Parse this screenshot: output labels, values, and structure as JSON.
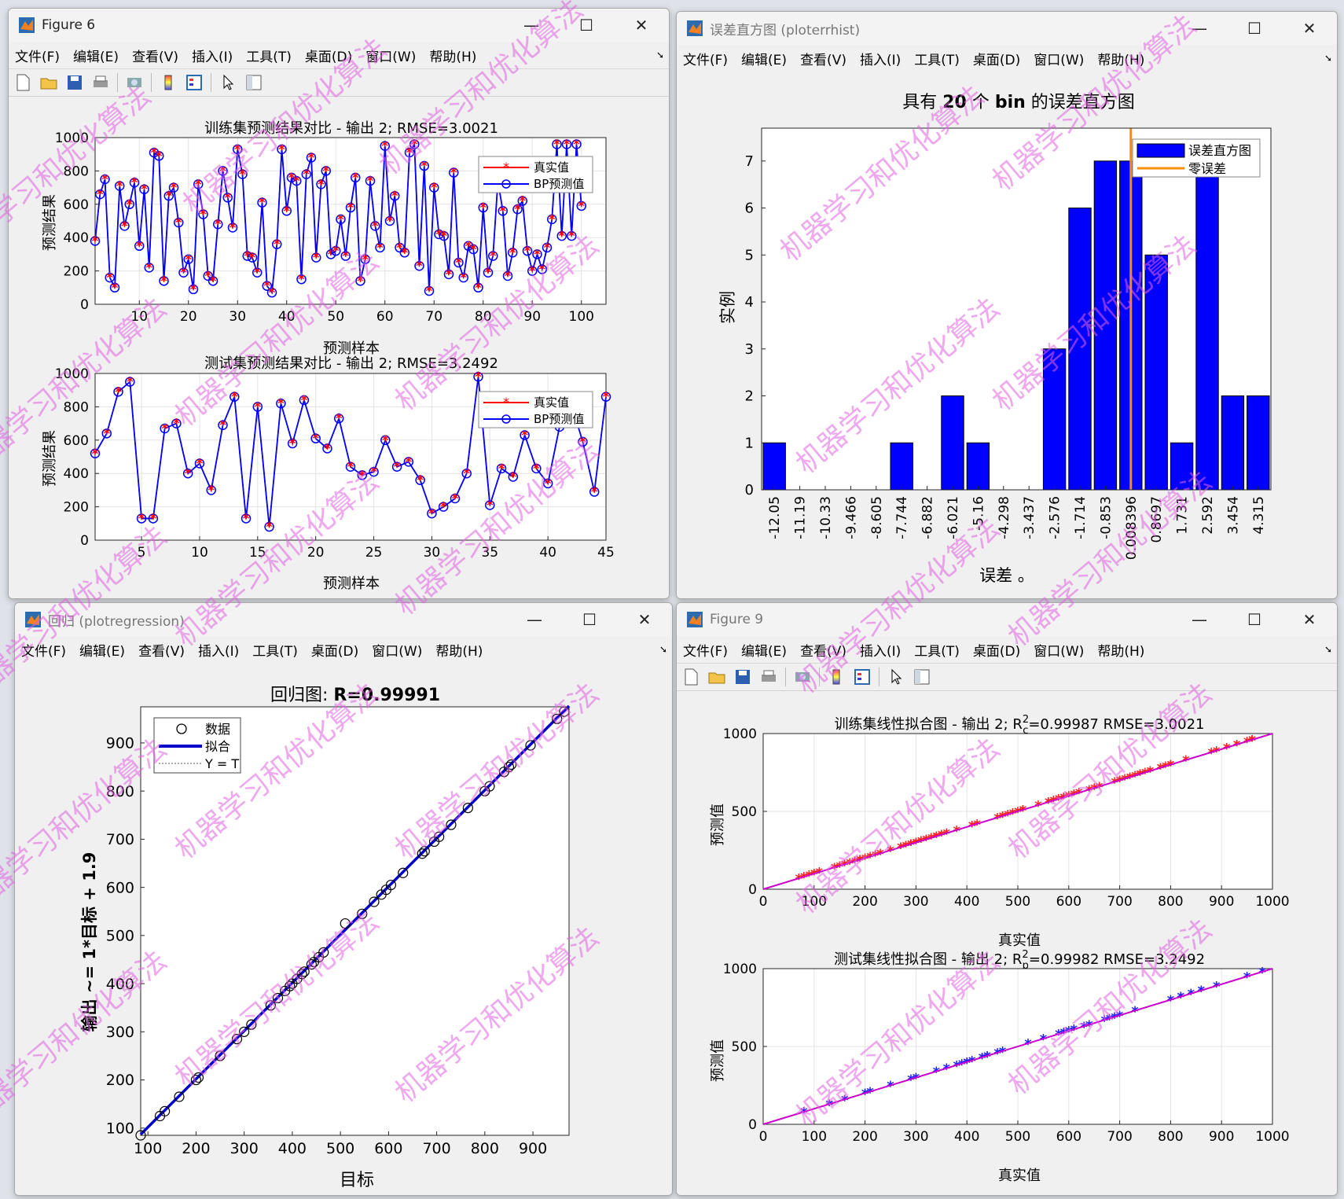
{
  "win1": {
    "title": "Figure 6",
    "menu": [
      "文件(F)",
      "编辑(E)",
      "查看(V)",
      "插入(I)",
      "工具(T)",
      "桌面(D)",
      "窗口(W)",
      "帮助(H)"
    ],
    "train_plot": {
      "title": "训练集预测结果对比 - 输出 2; RMSE=3.0021",
      "xlabel": "预测样本",
      "ylabel": "预测结果",
      "legend": [
        "真实值",
        "BP预测值"
      ]
    },
    "test_plot": {
      "title": "测试集预测结果对比 - 输出 2; RMSE=3.2492",
      "xlabel": "预测样本",
      "ylabel": "预测结果",
      "legend": [
        "真实值",
        "BP预测值"
      ]
    }
  },
  "win2": {
    "title": "误差直方图 (ploterrhist)",
    "menu": [
      "文件(F)",
      "编辑(E)",
      "查看(V)",
      "插入(I)",
      "工具(T)",
      "桌面(D)",
      "窗口(W)",
      "帮助(H)"
    ],
    "title_pre": "具有",
    "title_num": "20",
    "title_mid": "个",
    "title_bin": "bin",
    "title_post": "的误差直方图",
    "xlabel": "误差",
    "xlabel_suffix": "。",
    "ylabel": "实例",
    "legend": [
      "误差直方图",
      "零误差"
    ]
  },
  "win3": {
    "title": "回归 (plotregression)",
    "menu": [
      "文件(F)",
      "编辑(E)",
      "查看(V)",
      "插入(I)",
      "工具(T)",
      "桌面(D)",
      "窗口(W)",
      "帮助(H)"
    ],
    "title_pre": "回归图:",
    "title_r": "R=0.99991",
    "xlabel": "目标",
    "ylabel": "输出 ~= 1*目标 + 1.9",
    "legend": [
      "数据",
      "拟合",
      "Y = T"
    ]
  },
  "win4": {
    "title": "Figure 9",
    "menu": [
      "文件(F)",
      "编辑(E)",
      "查看(V)",
      "插入(I)",
      "工具(T)",
      "桌面(D)",
      "窗口(W)",
      "帮助(H)"
    ],
    "train_plot": {
      "title_pre": "训练集线性拟合图 - 输出 2; R",
      "title_sup": "2",
      "title_sub": "c",
      "title_post": "=0.99987  RMSE=3.0021",
      "xlabel": "真实值",
      "ylabel": "预测值"
    },
    "test_plot": {
      "title_pre": "测试集线性拟合图 - 输出 2; R",
      "title_sup": "2",
      "title_sub": "p",
      "title_post": "=0.99982  RMSE=3.2492",
      "xlabel": "真实值",
      "ylabel": "预测值"
    }
  },
  "watermark": "机器学习和优化算法",
  "colors": {
    "true_series": "#ff0000",
    "pred_series": "#0000ff",
    "hist_bar": "#0000ff",
    "zero_line": "#ff8c00",
    "fit_line": "#cc00cc",
    "watermark": "#e060e0"
  },
  "chart_data": [
    {
      "type": "line",
      "id": "train-compare",
      "xlim": [
        1,
        105
      ],
      "ylim": [
        0,
        1000
      ],
      "xticks": [
        10,
        20,
        30,
        40,
        50,
        60,
        70,
        80,
        90,
        100
      ],
      "yticks": [
        0,
        200,
        400,
        600,
        800,
        1000
      ],
      "series": [
        {
          "name": "真实值",
          "values": [
            380,
            660,
            750,
            160,
            100,
            710,
            470,
            600,
            730,
            350,
            690,
            220,
            910,
            890,
            140,
            650,
            700,
            490,
            190,
            270,
            90,
            720,
            540,
            170,
            140,
            480,
            800,
            640,
            460,
            930,
            780,
            290,
            280,
            190,
            610,
            110,
            70,
            360,
            930,
            560,
            760,
            740,
            150,
            780,
            880,
            280,
            720,
            800,
            300,
            320,
            510,
            290,
            580,
            760,
            140,
            270,
            740,
            470,
            340,
            950,
            500,
            650,
            340,
            310,
            910,
            960,
            230,
            830,
            80,
            700,
            420,
            410,
            180,
            790,
            250,
            160,
            350,
            330,
            100,
            580,
            190,
            290,
            740,
            560,
            170,
            310,
            570,
            620,
            320,
            200,
            300,
            210,
            340,
            510,
            960,
            410,
            960,
            410,
            960,
            590
          ],
          "note": ""
        },
        {
          "name": "BP预测值",
          "values": [
            380,
            660,
            750,
            160,
            100,
            710,
            470,
            600,
            730,
            350,
            690,
            220,
            910,
            890,
            140,
            650,
            700,
            490,
            190,
            270,
            90,
            720,
            540,
            170,
            140,
            480,
            800,
            640,
            460,
            930,
            780,
            290,
            280,
            190,
            610,
            110,
            70,
            360,
            930,
            560,
            760,
            740,
            150,
            780,
            880,
            280,
            720,
            800,
            300,
            320,
            510,
            290,
            580,
            760,
            140,
            270,
            740,
            470,
            340,
            950,
            500,
            650,
            340,
            310,
            910,
            960,
            230,
            830,
            80,
            700,
            420,
            410,
            180,
            790,
            250,
            160,
            350,
            330,
            100,
            580,
            190,
            290,
            740,
            560,
            170,
            310,
            570,
            620,
            320,
            200,
            300,
            210,
            340,
            510,
            960,
            410,
            960,
            410,
            960,
            590
          ]
        }
      ]
    },
    {
      "type": "line",
      "id": "test-compare",
      "xlim": [
        1,
        45
      ],
      "ylim": [
        0,
        1000
      ],
      "xticks": [
        5,
        10,
        15,
        20,
        25,
        30,
        35,
        40,
        45
      ],
      "yticks": [
        0,
        200,
        400,
        600,
        800,
        1000
      ],
      "series": [
        {
          "name": "真实值",
          "values": [
            520,
            640,
            890,
            950,
            130,
            130,
            670,
            700,
            400,
            460,
            300,
            690,
            860,
            130,
            800,
            80,
            820,
            580,
            840,
            610,
            550,
            730,
            440,
            390,
            410,
            600,
            440,
            470,
            360,
            160,
            200,
            250,
            400,
            980,
            210,
            430,
            380,
            630,
            430,
            340,
            680,
            820,
            590,
            290,
            860
          ]
        },
        {
          "name": "BP预测值",
          "values": [
            520,
            640,
            890,
            950,
            130,
            130,
            670,
            700,
            400,
            460,
            300,
            690,
            860,
            130,
            800,
            80,
            820,
            580,
            840,
            610,
            550,
            730,
            440,
            390,
            410,
            600,
            440,
            470,
            360,
            160,
            200,
            250,
            400,
            980,
            210,
            430,
            380,
            630,
            430,
            340,
            680,
            820,
            590,
            290,
            860
          ]
        }
      ]
    },
    {
      "type": "bar",
      "id": "error-histogram",
      "categories": [
        "-12.05",
        "-11.19",
        "-10.33",
        "-9.466",
        "-8.605",
        "-7.744",
        "-6.882",
        "-6.021",
        "-5.16",
        "-4.298",
        "-3.437",
        "-2.576",
        "-1.714",
        "-0.853",
        "0.008396",
        "0.8697",
        "1.731",
        "2.592",
        "3.454",
        "4.315"
      ],
      "values": [
        1,
        0,
        0,
        0,
        0,
        1,
        0,
        2,
        1,
        0,
        0,
        3,
        6,
        7,
        7,
        5,
        1,
        7,
        2,
        2
      ],
      "ylim": [
        0,
        7.7
      ],
      "yticks": [
        0,
        1,
        2,
        3,
        4,
        5,
        6,
        7
      ],
      "zero_error_category": "0.008396"
    },
    {
      "type": "scatter",
      "id": "regression",
      "xlim": [
        85,
        975
      ],
      "ylim": [
        85,
        975
      ],
      "xticks": [
        100,
        200,
        300,
        400,
        500,
        600,
        700,
        800,
        900
      ],
      "yticks": [
        100,
        200,
        300,
        400,
        500,
        600,
        700,
        800,
        900
      ],
      "fit": {
        "slope": 1,
        "intercept": 1.9
      },
      "points": [
        [
          85,
          85
        ],
        [
          125,
          125
        ],
        [
          135,
          135
        ],
        [
          165,
          165
        ],
        [
          200,
          200
        ],
        [
          205,
          205
        ],
        [
          250,
          250
        ],
        [
          285,
          285
        ],
        [
          300,
          300
        ],
        [
          315,
          315
        ],
        [
          355,
          355
        ],
        [
          370,
          370
        ],
        [
          385,
          385
        ],
        [
          395,
          395
        ],
        [
          400,
          400
        ],
        [
          410,
          410
        ],
        [
          420,
          420
        ],
        [
          425,
          425
        ],
        [
          440,
          440
        ],
        [
          445,
          445
        ],
        [
          455,
          455
        ],
        [
          465,
          465
        ],
        [
          510,
          525
        ],
        [
          545,
          545
        ],
        [
          570,
          570
        ],
        [
          585,
          585
        ],
        [
          595,
          595
        ],
        [
          605,
          605
        ],
        [
          630,
          630
        ],
        [
          670,
          670
        ],
        [
          675,
          675
        ],
        [
          695,
          695
        ],
        [
          705,
          705
        ],
        [
          730,
          730
        ],
        [
          765,
          765
        ],
        [
          800,
          800
        ],
        [
          810,
          810
        ],
        [
          840,
          840
        ],
        [
          850,
          850
        ],
        [
          855,
          855
        ],
        [
          895,
          895
        ],
        [
          950,
          950
        ],
        [
          965,
          965
        ]
      ]
    },
    {
      "type": "scatter",
      "id": "train-linear-fit",
      "xlim": [
        0,
        1000
      ],
      "ylim": [
        0,
        1000
      ],
      "xticks": [
        0,
        100,
        200,
        300,
        400,
        500,
        600,
        700,
        800,
        900,
        1000
      ],
      "yticks": [
        0,
        500,
        1000
      ],
      "points_from": "train-compare",
      "fit": {
        "slope": 1,
        "intercept": 0
      }
    },
    {
      "type": "scatter",
      "id": "test-linear-fit",
      "xlim": [
        0,
        1000
      ],
      "ylim": [
        0,
        1000
      ],
      "xticks": [
        0,
        100,
        200,
        300,
        400,
        500,
        600,
        700,
        800,
        900,
        1000
      ],
      "yticks": [
        0,
        500,
        1000
      ],
      "points_from": "test-compare",
      "fit": {
        "slope": 1,
        "intercept": 0
      }
    }
  ]
}
